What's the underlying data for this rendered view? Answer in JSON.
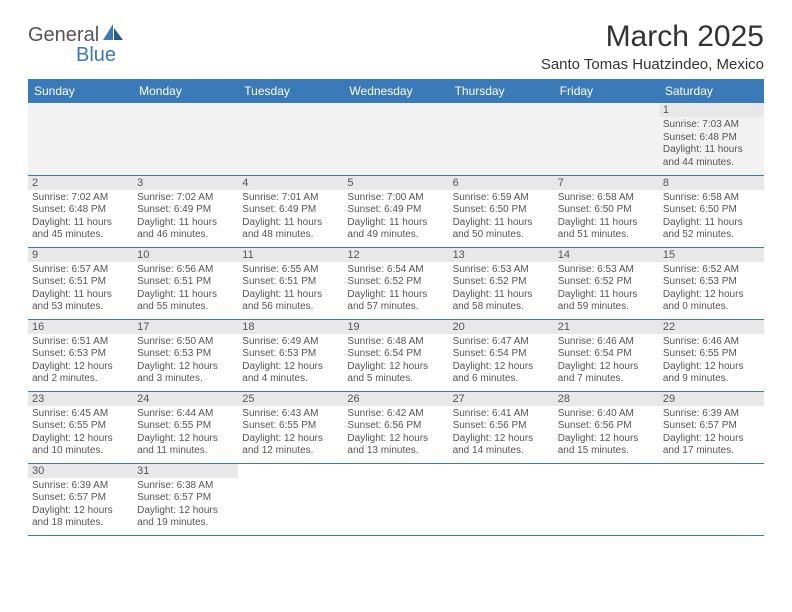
{
  "logo": {
    "text_a": "General",
    "text_b": "Blue",
    "color_gray": "#555555",
    "color_blue": "#3a7ab8"
  },
  "header": {
    "month_title": "March 2025",
    "location": "Santo Tomas Huatzindeo, Mexico"
  },
  "styling": {
    "header_bg": "#3a7ab8",
    "header_text": "#ffffff",
    "daynum_bg": "#e8e8e8",
    "row_border": "#3a7ab8",
    "week0_bg": "#f2f2f2",
    "body_text": "#555555",
    "title_fontsize": 30,
    "location_fontsize": 15,
    "th_fontsize": 12,
    "cell_fontsize": 10
  },
  "day_headers": [
    "Sunday",
    "Monday",
    "Tuesday",
    "Wednesday",
    "Thursday",
    "Friday",
    "Saturday"
  ],
  "weeks": [
    [
      {
        "day": "",
        "sunrise": "",
        "sunset": "",
        "daylight": ""
      },
      {
        "day": "",
        "sunrise": "",
        "sunset": "",
        "daylight": ""
      },
      {
        "day": "",
        "sunrise": "",
        "sunset": "",
        "daylight": ""
      },
      {
        "day": "",
        "sunrise": "",
        "sunset": "",
        "daylight": ""
      },
      {
        "day": "",
        "sunrise": "",
        "sunset": "",
        "daylight": ""
      },
      {
        "day": "",
        "sunrise": "",
        "sunset": "",
        "daylight": ""
      },
      {
        "day": "1",
        "sunrise": "Sunrise: 7:03 AM",
        "sunset": "Sunset: 6:48 PM",
        "daylight": "Daylight: 11 hours and 44 minutes."
      }
    ],
    [
      {
        "day": "2",
        "sunrise": "Sunrise: 7:02 AM",
        "sunset": "Sunset: 6:48 PM",
        "daylight": "Daylight: 11 hours and 45 minutes."
      },
      {
        "day": "3",
        "sunrise": "Sunrise: 7:02 AM",
        "sunset": "Sunset: 6:49 PM",
        "daylight": "Daylight: 11 hours and 46 minutes."
      },
      {
        "day": "4",
        "sunrise": "Sunrise: 7:01 AM",
        "sunset": "Sunset: 6:49 PM",
        "daylight": "Daylight: 11 hours and 48 minutes."
      },
      {
        "day": "5",
        "sunrise": "Sunrise: 7:00 AM",
        "sunset": "Sunset: 6:49 PM",
        "daylight": "Daylight: 11 hours and 49 minutes."
      },
      {
        "day": "6",
        "sunrise": "Sunrise: 6:59 AM",
        "sunset": "Sunset: 6:50 PM",
        "daylight": "Daylight: 11 hours and 50 minutes."
      },
      {
        "day": "7",
        "sunrise": "Sunrise: 6:58 AM",
        "sunset": "Sunset: 6:50 PM",
        "daylight": "Daylight: 11 hours and 51 minutes."
      },
      {
        "day": "8",
        "sunrise": "Sunrise: 6:58 AM",
        "sunset": "Sunset: 6:50 PM",
        "daylight": "Daylight: 11 hours and 52 minutes."
      }
    ],
    [
      {
        "day": "9",
        "sunrise": "Sunrise: 6:57 AM",
        "sunset": "Sunset: 6:51 PM",
        "daylight": "Daylight: 11 hours and 53 minutes."
      },
      {
        "day": "10",
        "sunrise": "Sunrise: 6:56 AM",
        "sunset": "Sunset: 6:51 PM",
        "daylight": "Daylight: 11 hours and 55 minutes."
      },
      {
        "day": "11",
        "sunrise": "Sunrise: 6:55 AM",
        "sunset": "Sunset: 6:51 PM",
        "daylight": "Daylight: 11 hours and 56 minutes."
      },
      {
        "day": "12",
        "sunrise": "Sunrise: 6:54 AM",
        "sunset": "Sunset: 6:52 PM",
        "daylight": "Daylight: 11 hours and 57 minutes."
      },
      {
        "day": "13",
        "sunrise": "Sunrise: 6:53 AM",
        "sunset": "Sunset: 6:52 PM",
        "daylight": "Daylight: 11 hours and 58 minutes."
      },
      {
        "day": "14",
        "sunrise": "Sunrise: 6:53 AM",
        "sunset": "Sunset: 6:52 PM",
        "daylight": "Daylight: 11 hours and 59 minutes."
      },
      {
        "day": "15",
        "sunrise": "Sunrise: 6:52 AM",
        "sunset": "Sunset: 6:53 PM",
        "daylight": "Daylight: 12 hours and 0 minutes."
      }
    ],
    [
      {
        "day": "16",
        "sunrise": "Sunrise: 6:51 AM",
        "sunset": "Sunset: 6:53 PM",
        "daylight": "Daylight: 12 hours and 2 minutes."
      },
      {
        "day": "17",
        "sunrise": "Sunrise: 6:50 AM",
        "sunset": "Sunset: 6:53 PM",
        "daylight": "Daylight: 12 hours and 3 minutes."
      },
      {
        "day": "18",
        "sunrise": "Sunrise: 6:49 AM",
        "sunset": "Sunset: 6:53 PM",
        "daylight": "Daylight: 12 hours and 4 minutes."
      },
      {
        "day": "19",
        "sunrise": "Sunrise: 6:48 AM",
        "sunset": "Sunset: 6:54 PM",
        "daylight": "Daylight: 12 hours and 5 minutes."
      },
      {
        "day": "20",
        "sunrise": "Sunrise: 6:47 AM",
        "sunset": "Sunset: 6:54 PM",
        "daylight": "Daylight: 12 hours and 6 minutes."
      },
      {
        "day": "21",
        "sunrise": "Sunrise: 6:46 AM",
        "sunset": "Sunset: 6:54 PM",
        "daylight": "Daylight: 12 hours and 7 minutes."
      },
      {
        "day": "22",
        "sunrise": "Sunrise: 6:46 AM",
        "sunset": "Sunset: 6:55 PM",
        "daylight": "Daylight: 12 hours and 9 minutes."
      }
    ],
    [
      {
        "day": "23",
        "sunrise": "Sunrise: 6:45 AM",
        "sunset": "Sunset: 6:55 PM",
        "daylight": "Daylight: 12 hours and 10 minutes."
      },
      {
        "day": "24",
        "sunrise": "Sunrise: 6:44 AM",
        "sunset": "Sunset: 6:55 PM",
        "daylight": "Daylight: 12 hours and 11 minutes."
      },
      {
        "day": "25",
        "sunrise": "Sunrise: 6:43 AM",
        "sunset": "Sunset: 6:55 PM",
        "daylight": "Daylight: 12 hours and 12 minutes."
      },
      {
        "day": "26",
        "sunrise": "Sunrise: 6:42 AM",
        "sunset": "Sunset: 6:56 PM",
        "daylight": "Daylight: 12 hours and 13 minutes."
      },
      {
        "day": "27",
        "sunrise": "Sunrise: 6:41 AM",
        "sunset": "Sunset: 6:56 PM",
        "daylight": "Daylight: 12 hours and 14 minutes."
      },
      {
        "day": "28",
        "sunrise": "Sunrise: 6:40 AM",
        "sunset": "Sunset: 6:56 PM",
        "daylight": "Daylight: 12 hours and 15 minutes."
      },
      {
        "day": "29",
        "sunrise": "Sunrise: 6:39 AM",
        "sunset": "Sunset: 6:57 PM",
        "daylight": "Daylight: 12 hours and 17 minutes."
      }
    ],
    [
      {
        "day": "30",
        "sunrise": "Sunrise: 6:39 AM",
        "sunset": "Sunset: 6:57 PM",
        "daylight": "Daylight: 12 hours and 18 minutes."
      },
      {
        "day": "31",
        "sunrise": "Sunrise: 6:38 AM",
        "sunset": "Sunset: 6:57 PM",
        "daylight": "Daylight: 12 hours and 19 minutes."
      },
      {
        "day": "",
        "sunrise": "",
        "sunset": "",
        "daylight": ""
      },
      {
        "day": "",
        "sunrise": "",
        "sunset": "",
        "daylight": ""
      },
      {
        "day": "",
        "sunrise": "",
        "sunset": "",
        "daylight": ""
      },
      {
        "day": "",
        "sunrise": "",
        "sunset": "",
        "daylight": ""
      },
      {
        "day": "",
        "sunrise": "",
        "sunset": "",
        "daylight": ""
      }
    ]
  ]
}
